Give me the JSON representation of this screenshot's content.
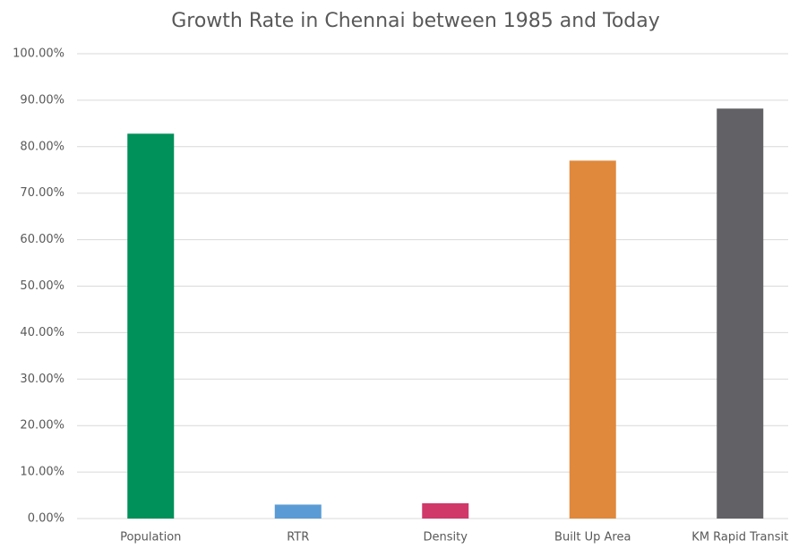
{
  "chart_data": {
    "type": "bar",
    "title": "Growth Rate in Chennai between 1985 and Today",
    "categories": [
      "Population",
      "RTR",
      "Density",
      "Built Up Area",
      "KM Rapid Transit"
    ],
    "values": [
      82.8,
      3.0,
      3.3,
      77.0,
      88.2
    ],
    "colors": [
      "#00905a",
      "#5b9bd5",
      "#d0386a",
      "#e0893c",
      "#626266"
    ],
    "ylim": [
      0,
      100
    ],
    "yticks": [
      {
        "value": 0,
        "label": "0.00%"
      },
      {
        "value": 10,
        "label": "10.00%"
      },
      {
        "value": 20,
        "label": "20.00%"
      },
      {
        "value": 30,
        "label": "30.00%"
      },
      {
        "value": 40,
        "label": "40.00%"
      },
      {
        "value": 50,
        "label": "50.00%"
      },
      {
        "value": 60,
        "label": "60.00%"
      },
      {
        "value": 70,
        "label": "70.00%"
      },
      {
        "value": 80,
        "label": "80.00%"
      },
      {
        "value": 90,
        "label": "90.00%"
      },
      {
        "value": 100,
        "label": "100.00%"
      }
    ],
    "grid": true
  }
}
